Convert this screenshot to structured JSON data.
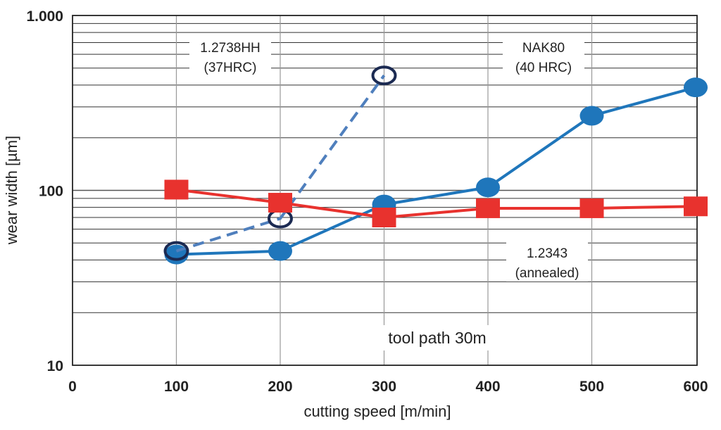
{
  "chart_data": {
    "type": "line",
    "title": "",
    "xlabel": "cutting speed [m/min]",
    "ylabel": "wear width [µm]",
    "xlim": [
      0,
      600
    ],
    "ylim": [
      10,
      1000
    ],
    "yscale": "log",
    "x_ticks": [
      "0",
      "100",
      "200",
      "300",
      "400",
      "500",
      "600"
    ],
    "y_ticks": [
      "10",
      "100",
      "1.000"
    ],
    "grid": true,
    "annotation": "tool path 30m",
    "series": [
      {
        "name": "NAK80 (40 HRC)",
        "label_lines": [
          "NAK80",
          "(40 HRC)"
        ],
        "color": "#1f76bb",
        "marker": "filled-circle",
        "style": "solid",
        "x": [
          100,
          200,
          300,
          400,
          500,
          600
        ],
        "values": [
          43,
          45,
          83,
          104,
          267,
          388
        ]
      },
      {
        "name": "1.2738HH (37HRC)",
        "label_lines": [
          "1.2738HH",
          "(37HRC)"
        ],
        "color": "#4f7fbd",
        "marker": "open-circle",
        "style": "dashed",
        "x": [
          100,
          200,
          300
        ],
        "values": [
          45,
          69,
          454
        ]
      },
      {
        "name": "1.2343 (annealed)",
        "label_lines": [
          "1.2343",
          "(annealed)"
        ],
        "color": "#e8322e",
        "marker": "square",
        "style": "solid",
        "x": [
          100,
          200,
          300,
          400,
          500,
          600
        ],
        "values": [
          101,
          85,
          70,
          79,
          79,
          81
        ]
      }
    ]
  }
}
